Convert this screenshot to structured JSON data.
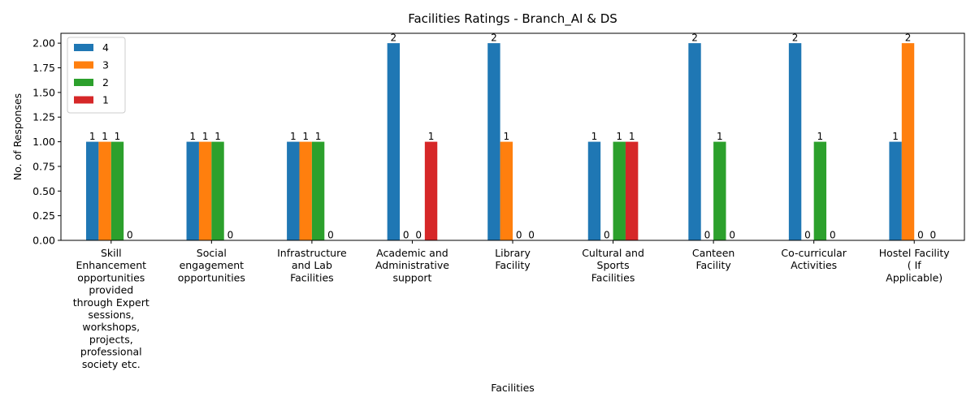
{
  "chart_data": {
    "type": "bar",
    "title": "Facilities Ratings - Branch_AI & DS",
    "xlabel": "Facilities",
    "ylabel": "No. of Responses",
    "ylim": [
      0,
      2.1
    ],
    "yticks": [
      "0.00",
      "0.25",
      "0.50",
      "0.75",
      "1.00",
      "1.25",
      "1.50",
      "1.75",
      "2.00"
    ],
    "grid": false,
    "legend_position": "top-left",
    "categories": [
      [
        "Skill",
        "Enhancement",
        "opportunities",
        "provided",
        "through Expert",
        "sessions,",
        "workshops,",
        "projects,",
        "professional",
        "society etc."
      ],
      [
        "Social",
        "engagement",
        "opportunities"
      ],
      [
        "Infrastructure",
        "and Lab",
        "Facilities"
      ],
      [
        "Academic and",
        "Administrative",
        "support"
      ],
      [
        "Library",
        "Facility"
      ],
      [
        "Cultural and",
        "Sports",
        "Facilities"
      ],
      [
        "Canteen",
        "Facility"
      ],
      [
        "Co-curricular",
        "Activities"
      ],
      [
        "Hostel Facility",
        "( If",
        "Applicable)"
      ]
    ],
    "series": [
      {
        "name": "4",
        "color": "#1f77b4",
        "values": [
          1,
          1,
          1,
          2,
          2,
          1,
          2,
          2,
          1
        ],
        "labels": [
          "1",
          "1",
          "1",
          "2",
          "2",
          "1",
          "2",
          "2",
          "1"
        ]
      },
      {
        "name": "3",
        "color": "#ff7f0e",
        "values": [
          1,
          1,
          1,
          0,
          1,
          0,
          0,
          0,
          2
        ],
        "labels": [
          "1",
          "1",
          "1",
          "0",
          "1",
          "0",
          "0",
          "0",
          "2"
        ]
      },
      {
        "name": "2",
        "color": "#2ca02c",
        "values": [
          1,
          1,
          1,
          0,
          0,
          1,
          1,
          1,
          0
        ],
        "labels": [
          "1",
          "1",
          "1",
          "0",
          "0",
          "1",
          "1",
          "1",
          "0"
        ]
      },
      {
        "name": "1",
        "color": "#d62728",
        "values": [
          0,
          0,
          0,
          1,
          0,
          1,
          0,
          0,
          0
        ],
        "labels": [
          "0",
          "0",
          "0",
          "1",
          "0",
          "1",
          "0",
          "0",
          "0"
        ]
      }
    ]
  }
}
